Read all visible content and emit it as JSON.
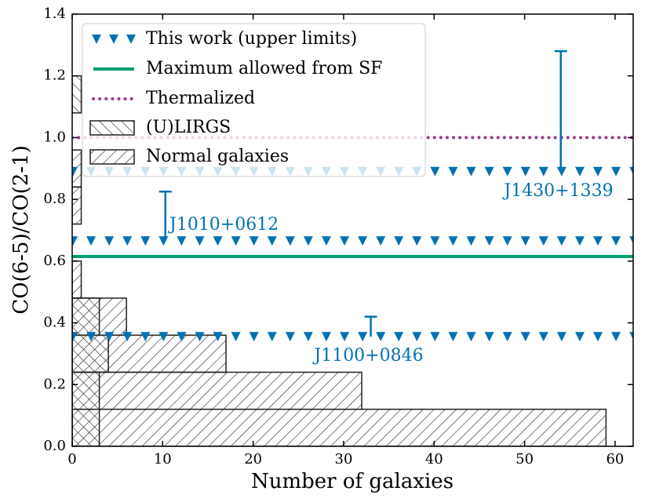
{
  "chart_data": {
    "type": "histogram",
    "xlabel": "Number of galaxies",
    "ylabel": "CO(6-5)/CO(2-1)",
    "xlim": [
      0,
      62
    ],
    "ylim": [
      0,
      1.4
    ],
    "xticks": [
      0,
      10,
      20,
      30,
      40,
      50,
      60
    ],
    "yticks": [
      {
        "value": 0,
        "label": "0.0"
      },
      {
        "value": 0.2,
        "label": "0.2"
      },
      {
        "value": 0.4,
        "label": "0.4"
      },
      {
        "value": 0.6,
        "label": "0.6"
      },
      {
        "value": 0.8,
        "label": "0.8"
      },
      {
        "value": 1,
        "label": "1.0"
      },
      {
        "value": 1.2,
        "label": "1.2"
      },
      {
        "value": 1.4,
        "label": "1.4"
      }
    ],
    "bins": [
      0,
      0.12,
      0.24,
      0.36,
      0.48,
      0.6,
      0.72,
      0.84,
      0.96,
      1.08,
      1.2
    ],
    "histograms": [
      {
        "name": "(U)LIRGS",
        "hatch": "backslash",
        "values": [
          3,
          3,
          4,
          3,
          0,
          0,
          0,
          0,
          0,
          1
        ]
      },
      {
        "name": "Normal galaxies",
        "hatch": "slash",
        "values": [
          59,
          32,
          17,
          6,
          1,
          0,
          1,
          1,
          0,
          0
        ]
      }
    ],
    "upper_limits": {
      "name": "This work (upper limits)",
      "color": "#0072b2",
      "sources": [
        {
          "label": "J1430+1339",
          "value": 0.89,
          "error_top": 1.28,
          "x": 54
        },
        {
          "label": "J1010+0612",
          "value": 0.665,
          "error_top": 0.825,
          "x": 10.3
        },
        {
          "label": "J1100+0846",
          "value": 0.355,
          "error_top": 0.42,
          "x": 33
        }
      ]
    },
    "lines": [
      {
        "name": "Maximum allowed from SF",
        "value": 0.615,
        "color": "#009e73",
        "style": "solid"
      },
      {
        "name": "Thermalized",
        "value": 1.0,
        "color": "#9b3a8a",
        "style": "dotted"
      }
    ],
    "legend": "upper left"
  }
}
